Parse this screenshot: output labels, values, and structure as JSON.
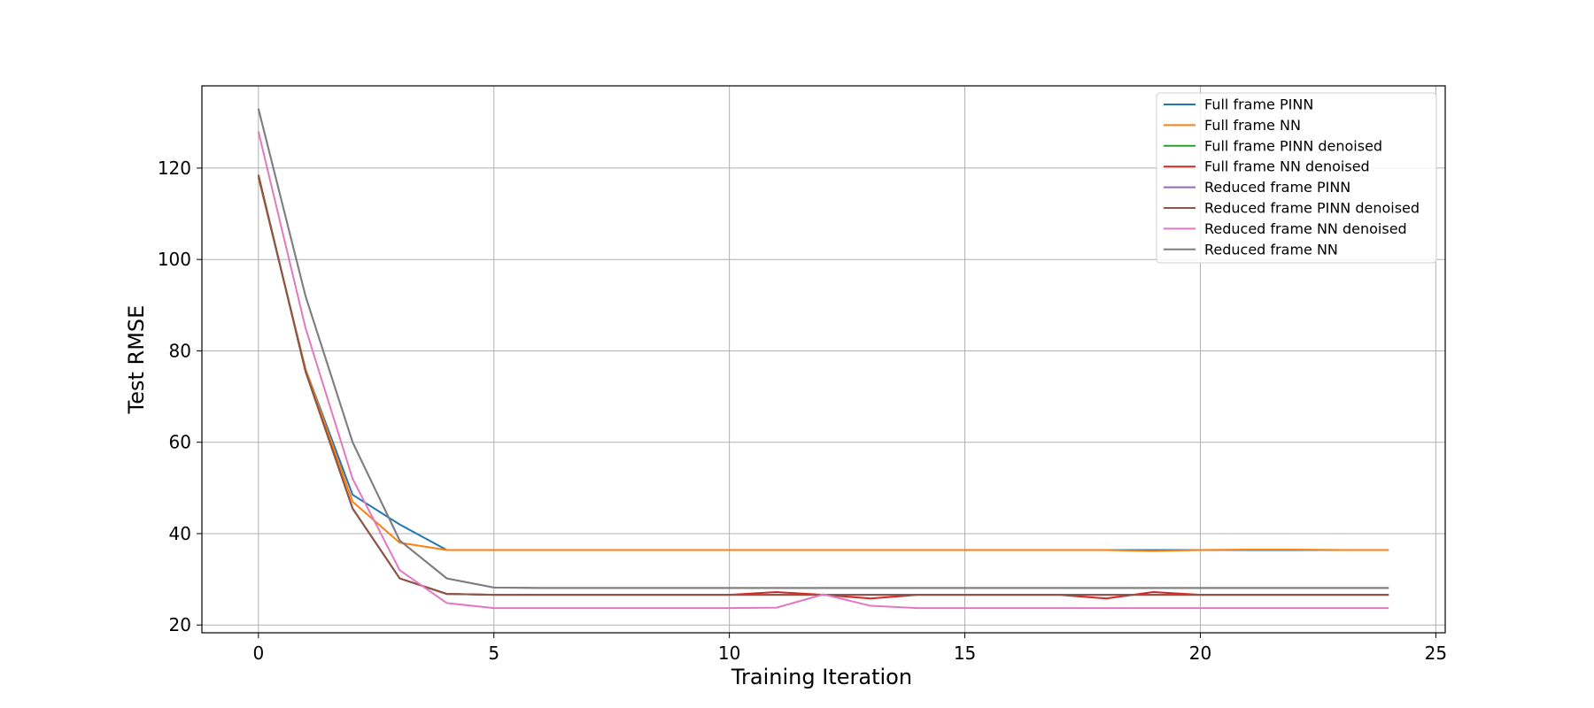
{
  "chart_data": {
    "type": "line",
    "title": "",
    "xlabel": "Training Iteration",
    "ylabel": "Test RMSE",
    "xlim": [
      -1.2,
      25.2
    ],
    "ylim": [
      18.3,
      138
    ],
    "xticks": [
      0,
      5,
      10,
      15,
      20,
      25
    ],
    "yticks": [
      20,
      40,
      60,
      80,
      100,
      120
    ],
    "xtick_labels": [
      "0",
      "5",
      "10",
      "15",
      "20",
      "25"
    ],
    "ytick_labels": [
      "20",
      "40",
      "60",
      "80",
      "100",
      "120"
    ],
    "grid": true,
    "legend_position": "top-right",
    "x": [
      0,
      1,
      2,
      3,
      4,
      5,
      6,
      7,
      8,
      9,
      10,
      11,
      12,
      13,
      14,
      15,
      16,
      17,
      18,
      19,
      20,
      21,
      22,
      23,
      24
    ],
    "series": [
      {
        "name": "Full frame PINN",
        "color": "#1f77b4",
        "values": [
          118,
          76,
          48.5,
          42,
          36.4,
          36.4,
          36.4,
          36.4,
          36.4,
          36.4,
          36.4,
          36.4,
          36.4,
          36.4,
          36.4,
          36.4,
          36.4,
          36.4,
          36.4,
          36.4,
          36.4,
          36.4,
          36.4,
          36.4,
          36.4
        ]
      },
      {
        "name": "Full frame NN",
        "color": "#ff7f0e",
        "values": [
          118,
          76,
          47,
          38,
          36.4,
          36.4,
          36.4,
          36.4,
          36.4,
          36.4,
          36.4,
          36.4,
          36.4,
          36.4,
          36.4,
          36.4,
          36.4,
          36.4,
          36.4,
          36.2,
          36.4,
          36.5,
          36.5,
          36.4,
          36.4
        ]
      },
      {
        "name": "Full frame PINN denoised",
        "color": "#2ca02c",
        "values": [
          118.5,
          75.5,
          45.5,
          30.2,
          26.8,
          26.6,
          26.6,
          26.6,
          26.6,
          26.6,
          26.6,
          26.6,
          26.6,
          26.6,
          26.6,
          26.6,
          26.6,
          26.6,
          26.6,
          26.6,
          26.6,
          26.6,
          26.6,
          26.6,
          26.6
        ]
      },
      {
        "name": "Full frame NN denoised",
        "color": "#d62728",
        "values": [
          118.5,
          75.5,
          45.5,
          30.2,
          26.8,
          26.6,
          26.6,
          26.6,
          26.6,
          26.6,
          26.6,
          27.2,
          26.6,
          25.8,
          26.6,
          26.6,
          26.6,
          26.6,
          25.8,
          27.2,
          26.6,
          26.6,
          26.6,
          26.6,
          26.6
        ]
      },
      {
        "name": "Reduced frame PINN",
        "color": "#9467bd",
        "values": [
          133,
          92,
          60,
          38.5,
          30.2,
          28.2,
          28.1,
          28.1,
          28.1,
          28.1,
          28.1,
          28.1,
          28.1,
          28.1,
          28.1,
          28.1,
          28.1,
          28.1,
          28.1,
          28.1,
          28.1,
          28.1,
          28.1,
          28.1,
          28.1
        ]
      },
      {
        "name": "Reduced frame PINN denoised",
        "color": "#8c564b",
        "values": [
          118.5,
          75.5,
          45.5,
          30.2,
          26.8,
          26.6,
          26.6,
          26.6,
          26.6,
          26.6,
          26.6,
          26.6,
          26.6,
          26.6,
          26.6,
          26.6,
          26.6,
          26.6,
          26.6,
          26.6,
          26.6,
          26.6,
          26.6,
          26.6,
          26.6
        ]
      },
      {
        "name": "Reduced frame NN denoised",
        "color": "#e377c2",
        "values": [
          128,
          85,
          52,
          32,
          24.8,
          23.7,
          23.7,
          23.7,
          23.7,
          23.7,
          23.7,
          23.8,
          26.7,
          24.2,
          23.7,
          23.7,
          23.7,
          23.7,
          23.7,
          23.7,
          23.7,
          23.7,
          23.7,
          23.7,
          23.7
        ]
      },
      {
        "name": "Reduced frame NN",
        "color": "#7f7f7f",
        "values": [
          133,
          92,
          60,
          38.5,
          30.2,
          28.2,
          28.1,
          28.1,
          28.1,
          28.1,
          28.1,
          28.1,
          28.1,
          28.1,
          28.1,
          28.1,
          28.1,
          28.1,
          28.1,
          28.1,
          28.1,
          28.1,
          28.1,
          28.1,
          28.1
        ]
      }
    ]
  }
}
